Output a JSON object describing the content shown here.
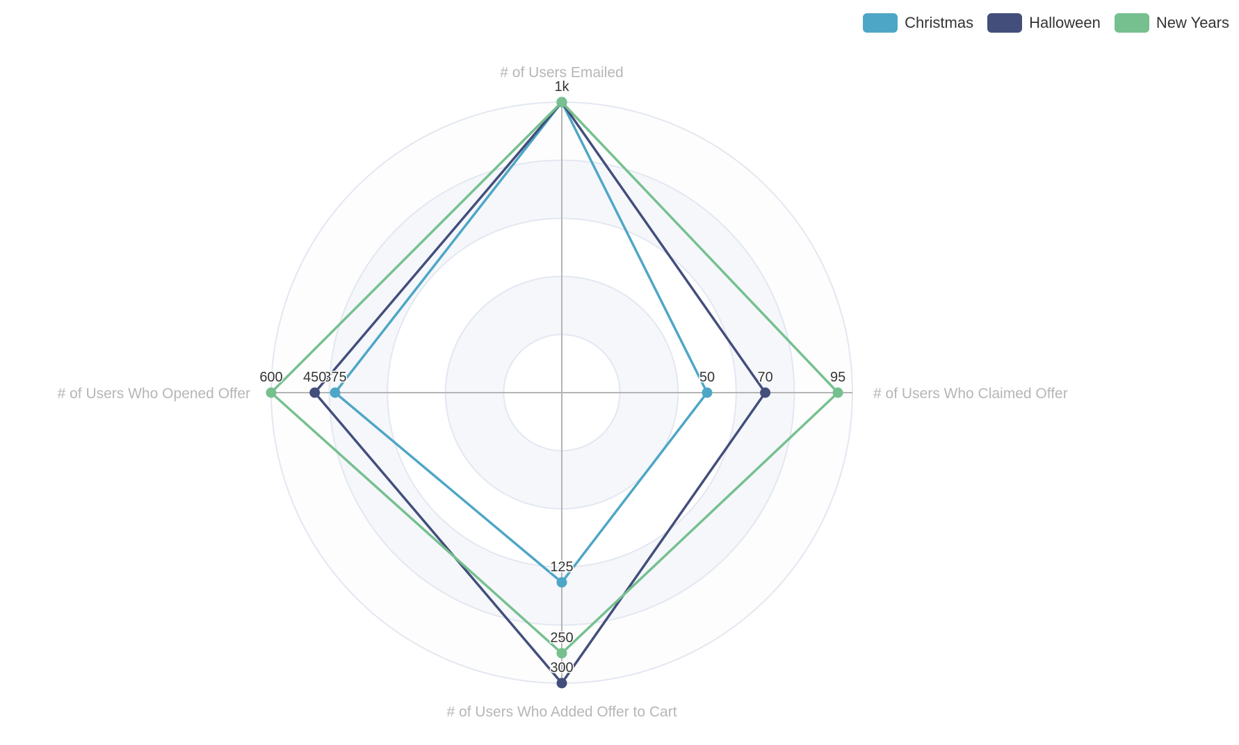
{
  "legend": {
    "items": [
      {
        "label": "Christmas",
        "color": "#4ea6c6"
      },
      {
        "label": "Halloween",
        "color": "#434e7b"
      },
      {
        "label": "New Years",
        "color": "#76c08f"
      }
    ]
  },
  "chart_data": {
    "type": "radar",
    "title": "",
    "indicators": [
      "# of Users Emailed",
      "# of Users Who Claimed Offer",
      "# of Users Who Added Offer to Cart",
      "# of Users Who Opened Offer"
    ],
    "series": [
      {
        "name": "Christmas",
        "color": "#4ea6c6",
        "values": [
          1000,
          50,
          125,
          375
        ],
        "labels": [
          "1k",
          "50",
          "125",
          "375"
        ],
        "radii": [
          1.0,
          0.5,
          0.653,
          0.78
        ]
      },
      {
        "name": "Halloween",
        "color": "#434e7b",
        "values": [
          1000,
          70,
          300,
          450
        ],
        "labels": [
          "1k",
          "70",
          "300",
          "450"
        ],
        "radii": [
          1.0,
          0.7,
          1.0,
          0.85
        ]
      },
      {
        "name": "New Years",
        "color": "#76c08f",
        "values": [
          1000,
          95,
          250,
          600
        ],
        "labels": [
          "1k",
          "95",
          "250",
          "600"
        ],
        "radii": [
          1.0,
          0.95,
          0.897,
          1.0
        ]
      }
    ],
    "split_number": 5,
    "legend_position": "top-right"
  }
}
